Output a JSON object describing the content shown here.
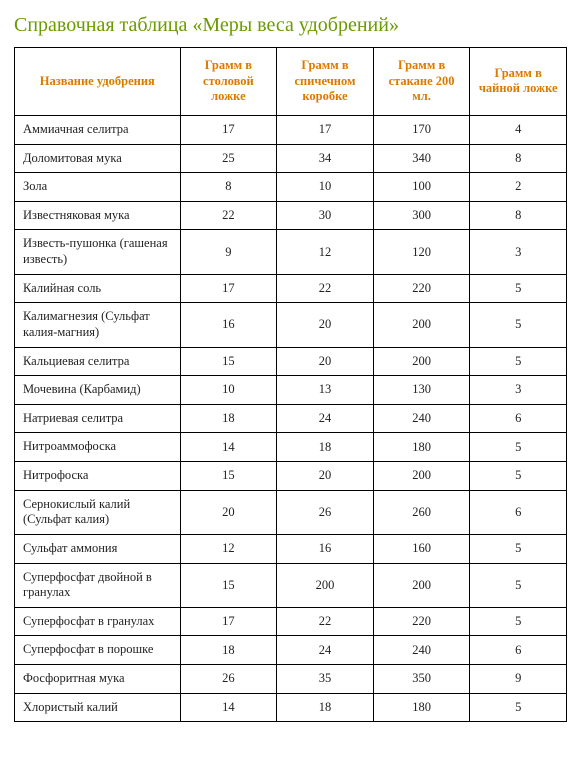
{
  "title": "Справочная таблица «Меры веса удобрений»",
  "table": {
    "columns": [
      "Название удобрения",
      "Грамм в столовой ложке",
      "Грамм в спичечном коробке",
      "Грамм в стакане 200 мл.",
      "Грамм в чайной ложке"
    ],
    "rows": [
      {
        "name": "Аммиачная селитра",
        "v": [
          "17",
          "17",
          "170",
          "4"
        ]
      },
      {
        "name": "Доломитовая мука",
        "v": [
          "25",
          "34",
          "340",
          "8"
        ]
      },
      {
        "name": "Зола",
        "v": [
          "8",
          "10",
          "100",
          "2"
        ]
      },
      {
        "name": "Известняковая мука",
        "v": [
          "22",
          "30",
          "300",
          "8"
        ]
      },
      {
        "name": "Известь-пушонка (гашеная известь)",
        "v": [
          "9",
          "12",
          "120",
          "3"
        ]
      },
      {
        "name": "Калийная соль",
        "v": [
          "17",
          "22",
          "220",
          "5"
        ]
      },
      {
        "name": "Калимагнезия (Сульфат калия-магния)",
        "v": [
          "16",
          "20",
          "200",
          "5"
        ]
      },
      {
        "name": "Кальциевая селитра",
        "v": [
          "15",
          "20",
          "200",
          "5"
        ]
      },
      {
        "name": "Мочевина (Карбамид)",
        "v": [
          "10",
          "13",
          "130",
          "3"
        ]
      },
      {
        "name": "Натриевая селитра",
        "v": [
          "18",
          "24",
          "240",
          "6"
        ]
      },
      {
        "name": "Нитроаммофоска",
        "v": [
          "14",
          "18",
          "180",
          "5"
        ]
      },
      {
        "name": "Нитрофоска",
        "v": [
          "15",
          "20",
          "200",
          "5"
        ]
      },
      {
        "name": "Сернокислый калий (Сульфат калия)",
        "v": [
          "20",
          "26",
          "260",
          "6"
        ]
      },
      {
        "name": "Сульфат аммония",
        "v": [
          "12",
          "16",
          "160",
          "5"
        ]
      },
      {
        "name": "Суперфосфат двойной в гранулах",
        "v": [
          "15",
          "200",
          "200",
          "5"
        ]
      },
      {
        "name": "Суперфосфат в гранулах",
        "v": [
          "17",
          "22",
          "220",
          "5"
        ]
      },
      {
        "name": "Суперфосфат в порошке",
        "v": [
          "18",
          "24",
          "240",
          "6"
        ]
      },
      {
        "name": "Фосфоритная мука",
        "v": [
          "26",
          "35",
          "350",
          "9"
        ]
      },
      {
        "name": "Хлористый калий",
        "v": [
          "14",
          "18",
          "180",
          "5"
        ]
      }
    ],
    "colors": {
      "title": "#6a9b00",
      "header_text": "#d97b00",
      "cell_text": "#222222",
      "border": "#000000",
      "background": "#ffffff"
    }
  }
}
